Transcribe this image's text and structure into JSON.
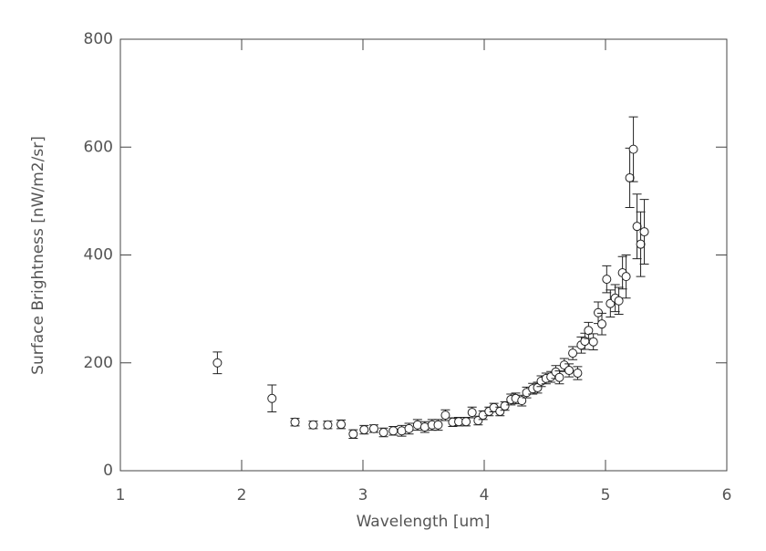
{
  "chart_data": {
    "type": "scatter",
    "xlabel": "Wavelength [um]",
    "ylabel": "Surface Brightness [nW/m2/sr]",
    "x": [
      1.8,
      2.25,
      2.44,
      2.59,
      2.71,
      2.82,
      2.92,
      3.01,
      3.09,
      3.17,
      3.25,
      3.32,
      3.38,
      3.45,
      3.51,
      3.57,
      3.62,
      3.68,
      3.74,
      3.79,
      3.85,
      3.9,
      3.95,
      3.99,
      4.04,
      4.08,
      4.13,
      4.17,
      4.22,
      4.26,
      4.31,
      4.35,
      4.4,
      4.44,
      4.47,
      4.51,
      4.55,
      4.59,
      4.62,
      4.66,
      4.7,
      4.73,
      4.77,
      4.8,
      4.83,
      4.86,
      4.9,
      4.94,
      4.97,
      5.01,
      5.04,
      5.08,
      5.11,
      5.14,
      5.17,
      5.2,
      5.23,
      5.26,
      5.29,
      5.32
    ],
    "series": [
      {
        "color": "#222222",
        "values": [
          200,
          134,
          90,
          85,
          85,
          86,
          68,
          76,
          78,
          71,
          74,
          74,
          78,
          85,
          81,
          85,
          85,
          103,
          90,
          91,
          91,
          108,
          93,
          103,
          110,
          117,
          110,
          120,
          132,
          134,
          130,
          145,
          152,
          154,
          166,
          171,
          174,
          183,
          173,
          196,
          186,
          218,
          181,
          233,
          240,
          260,
          239,
          293,
          272,
          355,
          310,
          320,
          315,
          367,
          360,
          543,
          596,
          453,
          420,
          443
        ],
        "errors": [
          20,
          25,
          7,
          7,
          7,
          8,
          8,
          8,
          7,
          8,
          8,
          10,
          10,
          10,
          10,
          10,
          10,
          10,
          8,
          8,
          8,
          10,
          8,
          8,
          8,
          8,
          8,
          8,
          10,
          10,
          10,
          10,
          10,
          10,
          10,
          10,
          10,
          12,
          12,
          12,
          12,
          12,
          12,
          15,
          15,
          15,
          15,
          20,
          20,
          25,
          25,
          25,
          25,
          30,
          40,
          55,
          60,
          60,
          60,
          60
        ]
      }
    ],
    "xlim": [
      1,
      6
    ],
    "xticks": [
      1,
      2,
      3,
      4,
      5,
      6
    ],
    "ylim": [
      0,
      800
    ],
    "yticks": [
      0,
      200,
      400,
      600,
      800
    ]
  }
}
